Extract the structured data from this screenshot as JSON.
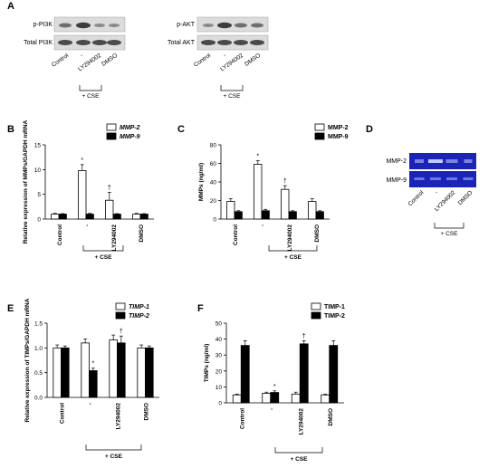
{
  "panels": {
    "A": "A",
    "B": "B",
    "C": "C",
    "D": "D",
    "E": "E",
    "F": "F"
  },
  "western_blot": {
    "left": {
      "rows": [
        "p-PI3K",
        "Total PI3K"
      ],
      "lanes": [
        "Control",
        "-",
        "LY294002",
        "DMSO"
      ],
      "treatment": "+ CSE"
    },
    "right": {
      "rows": [
        "p-AKT",
        "Total AKT"
      ],
      "lanes": [
        "Control",
        "-",
        "LY294002",
        "DMSO"
      ],
      "treatment": "+ CSE"
    }
  },
  "zymogram": {
    "rows": [
      "MMP-2",
      "MMP-9"
    ],
    "lanes": [
      "Control",
      "-",
      "LY294002",
      "DMSO"
    ],
    "treatment": "+ CSE",
    "band_color": "#2b3fd1",
    "bg_color": "#1c24b8"
  },
  "colors": {
    "open_bar": "#ffffff",
    "solid_bar": "#000000"
  },
  "chart_data": [
    {
      "id": "B",
      "type": "bar",
      "ylabel": "Relative expression of MMPs/GAPDH mRNA",
      "ylim": [
        0,
        15
      ],
      "yticks": [
        0,
        5,
        10,
        15
      ],
      "categories": [
        "Control",
        "-",
        "LY294002",
        "DMSO"
      ],
      "treatment": "+ CSE",
      "series": [
        {
          "name": "MMP-2",
          "values": [
            1.0,
            9.8,
            3.8,
            1.0
          ],
          "errors": [
            0.15,
            1.2,
            1.6,
            0.15
          ],
          "marks": [
            "",
            "*",
            "†",
            ""
          ]
        },
        {
          "name": "MMP-9",
          "values": [
            1.0,
            1.0,
            1.0,
            1.0
          ],
          "errors": [
            0.1,
            0.15,
            0.1,
            0.1
          ],
          "marks": [
            "",
            "",
            "",
            ""
          ]
        }
      ],
      "legend": "top-right"
    },
    {
      "id": "C",
      "type": "bar",
      "ylabel": "MMPs (ng/ml)",
      "ylim": [
        0,
        80
      ],
      "yticks": [
        0,
        20,
        40,
        60,
        80
      ],
      "categories": [
        "Control",
        "-",
        "LY294002",
        "DMSO"
      ],
      "treatment": "+ CSE",
      "series": [
        {
          "name": "MMP-2",
          "values": [
            19,
            59,
            32,
            19
          ],
          "errors": [
            3,
            4,
            4,
            3
          ],
          "marks": [
            "",
            "*",
            "†",
            ""
          ]
        },
        {
          "name": "MMP-9",
          "values": [
            8,
            9,
            8,
            8
          ],
          "errors": [
            1,
            1.5,
            1,
            1
          ],
          "marks": [
            "",
            "",
            "",
            ""
          ]
        }
      ],
      "legend": "top-right"
    },
    {
      "id": "E",
      "type": "bar",
      "ylabel": "Relative expression of TIMPs/GAPDH mRNA",
      "ylim": [
        0,
        1.5
      ],
      "yticks": [
        0.0,
        0.5,
        1.0,
        1.5
      ],
      "ytick_labels": [
        "0.0",
        "0.5",
        "1.0",
        "1.5"
      ],
      "categories": [
        "Control",
        "-",
        "LY294002",
        "DMSO"
      ],
      "treatment": "+ CSE",
      "series": [
        {
          "name": "TIMP-1",
          "values": [
            1.0,
            1.1,
            1.16,
            1.0
          ],
          "errors": [
            0.06,
            0.08,
            0.1,
            0.06
          ],
          "marks": [
            "",
            "",
            "",
            ""
          ]
        },
        {
          "name": "TIMP-2",
          "values": [
            1.0,
            0.54,
            1.1,
            1.0
          ],
          "errors": [
            0.04,
            0.05,
            0.14,
            0.04
          ],
          "marks": [
            "",
            "*",
            "†",
            ""
          ]
        }
      ],
      "legend": "top-right"
    },
    {
      "id": "F",
      "type": "bar",
      "ylabel": "TIMPs (ng/ml)",
      "ylim": [
        0,
        50
      ],
      "yticks": [
        0,
        10,
        20,
        30,
        40,
        50
      ],
      "categories": [
        "Control",
        "-",
        "LY294002",
        "DMSO"
      ],
      "treatment": "+ CSE",
      "series": [
        {
          "name": "TIMP-1",
          "values": [
            5,
            6,
            5.5,
            5
          ],
          "errors": [
            0.5,
            0.7,
            1.2,
            0.5
          ],
          "marks": [
            "",
            "",
            "",
            ""
          ]
        },
        {
          "name": "TIMP-2",
          "values": [
            36,
            6.5,
            37,
            36
          ],
          "errors": [
            3,
            1,
            2,
            3
          ],
          "marks": [
            "",
            "*",
            "†",
            ""
          ]
        }
      ],
      "legend": "top-right"
    }
  ]
}
